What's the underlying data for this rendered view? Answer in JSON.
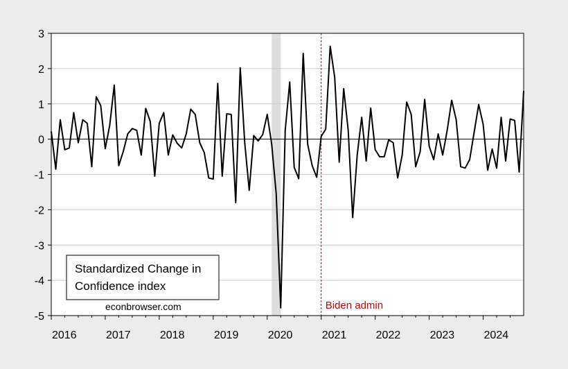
{
  "chart_data": {
    "type": "line",
    "title": "",
    "xlabel": "",
    "ylabel": "",
    "ylim": [
      -5,
      3
    ],
    "xlim": [
      "2016-01",
      "2024-10"
    ],
    "y_ticks": [
      "3",
      "2",
      "1",
      "0",
      "-1",
      "-2",
      "-3",
      "-4",
      "-5"
    ],
    "x_ticks": [
      "2016",
      "2017",
      "2018",
      "2019",
      "2020",
      "2021",
      "2022",
      "2023",
      "2024"
    ],
    "grid": true,
    "legend": {
      "placement": "bottom-left",
      "lines": [
        "Standardized Change in",
        "Confidence index"
      ]
    },
    "credit": "econbrowser.com",
    "recession_shading": {
      "start": "2020-02",
      "end": "2020-04",
      "color": "#dedede"
    },
    "annotation": {
      "date": "2021-01",
      "label": "Biden admin",
      "color": "#cc0000"
    },
    "zero_line": 0,
    "series": [
      {
        "color": "#000000",
        "start": "2016-01",
        "frequency": "monthly",
        "values": [
          0.22,
          -0.85,
          0.55,
          -0.3,
          -0.25,
          0.75,
          -0.1,
          0.55,
          0.45,
          -0.78,
          1.2,
          0.95,
          -0.27,
          0.4,
          1.53,
          -0.75,
          -0.35,
          0.15,
          0.3,
          0.25,
          -0.45,
          0.87,
          0.5,
          -1.05,
          0.45,
          0.75,
          -0.45,
          0.12,
          -0.12,
          -0.25,
          0.15,
          0.85,
          0.7,
          -0.1,
          -0.38,
          -1.1,
          -1.13,
          1.58,
          -1.05,
          0.72,
          0.7,
          -1.8,
          2.02,
          -0.1,
          -1.45,
          0.1,
          -0.05,
          0.13,
          0.7,
          -0.15,
          -1.55,
          -4.78,
          0.25,
          1.62,
          -0.8,
          -1.12,
          2.43,
          -0.15,
          -0.75,
          -1.08,
          0.08,
          0.28,
          2.63,
          1.75,
          -0.65,
          1.43,
          0.25,
          -2.22,
          -0.45,
          0.62,
          -0.62,
          0.88,
          -0.3,
          -0.5,
          -0.5,
          -0.02,
          -0.1,
          -1.1,
          -0.45,
          1.05,
          0.7,
          -0.78,
          -0.35,
          1.13,
          -0.2,
          -0.58,
          0.15,
          -0.45,
          0.25,
          1.1,
          0.55,
          -0.78,
          -0.82,
          -0.58,
          0.2,
          0.98,
          0.42,
          -0.88,
          -0.28,
          -0.82,
          0.62,
          -0.62,
          0.57,
          0.53,
          -0.93,
          1.37
        ]
      }
    ]
  }
}
